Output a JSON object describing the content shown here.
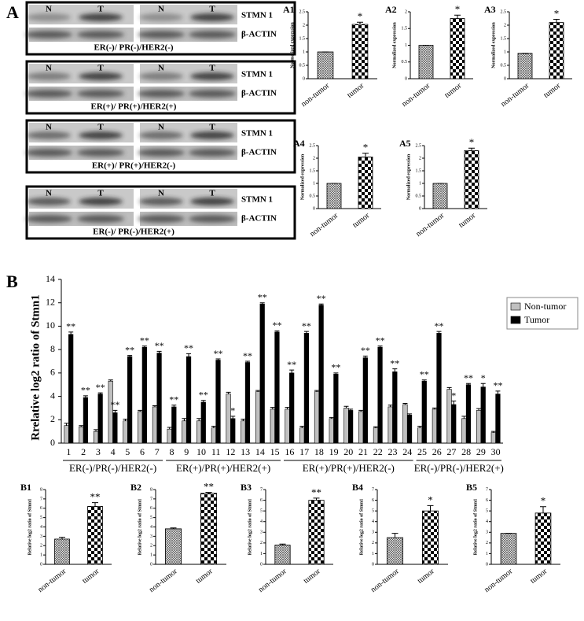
{
  "panels": [
    "A",
    "B"
  ],
  "blots": [
    {
      "lanes": [
        "N",
        "T",
        "N",
        "T"
      ],
      "bands": [
        "STMN 1",
        "β-ACTIN"
      ],
      "caption": "ER(-)/ PR(-)/HER2(-)"
    },
    {
      "lanes": [
        "N",
        "T",
        "N",
        "T"
      ],
      "bands": [
        "STMN 1",
        "β-ACTIN"
      ],
      "caption": "ER(+)/ PR(+)/HER2(+)"
    },
    {
      "lanes": [
        "N",
        "T",
        "N",
        "T"
      ],
      "bands": [
        "STMN 1",
        "β-ACTIN"
      ],
      "caption": "ER(+)/ PR(+)/HER2(-)"
    },
    {
      "lanes": [
        "N",
        "T",
        "N",
        "T"
      ],
      "bands": [
        "STMN 1",
        "β-ACTIN"
      ],
      "caption": "ER(-)/ PR(-)/HER2(+)"
    }
  ],
  "chart_data": [
    {
      "type": "bar",
      "label": "A1",
      "ylabel": "Normalized expression",
      "categories": [
        "non-tumor",
        "tumor"
      ],
      "values": [
        1.0,
        2.03
      ],
      "errors": [
        0.0,
        0.08
      ],
      "significance": [
        null,
        "*"
      ],
      "ylim": [
        0,
        2.5
      ],
      "yticks": [
        0,
        0.5,
        1,
        1.5,
        2,
        2.5
      ]
    },
    {
      "type": "bar",
      "label": "A2",
      "ylabel": "Normalized expression",
      "categories": [
        "non-tumor",
        "tumor"
      ],
      "values": [
        1.0,
        1.8
      ],
      "errors": [
        0.0,
        0.1
      ],
      "significance": [
        null,
        "*"
      ],
      "ylim": [
        0,
        2
      ],
      "yticks": [
        0,
        0.5,
        1,
        1.5,
        2
      ]
    },
    {
      "type": "bar",
      "label": "A3",
      "ylabel": "Normalized expression",
      "categories": [
        "non-tumor",
        "tumor"
      ],
      "values": [
        0.95,
        2.1
      ],
      "errors": [
        0.0,
        0.12
      ],
      "significance": [
        null,
        "*"
      ],
      "ylim": [
        0,
        2.5
      ],
      "yticks": [
        0,
        0.5,
        1,
        1.5,
        2,
        2.5
      ]
    },
    {
      "type": "bar",
      "label": "A4",
      "ylabel": "Normalized expression",
      "categories": [
        "non-tumor",
        "tumor"
      ],
      "values": [
        1.0,
        2.05
      ],
      "errors": [
        0.0,
        0.15
      ],
      "significance": [
        null,
        "*"
      ],
      "ylim": [
        0,
        2.5
      ],
      "yticks": [
        0,
        0.5,
        1,
        1.5,
        2,
        2.5
      ]
    },
    {
      "type": "bar",
      "label": "A5",
      "ylabel": "Normalized expression",
      "categories": [
        "non-tumor",
        "tumor"
      ],
      "values": [
        1.0,
        2.3
      ],
      "errors": [
        0.0,
        0.1
      ],
      "significance": [
        null,
        "*"
      ],
      "ylim": [
        0,
        2.5
      ],
      "yticks": [
        0,
        0.5,
        1,
        1.5,
        2,
        2.5
      ]
    },
    {
      "type": "groupedbar",
      "label": "B",
      "ylabel": "Rrelative log2 ratio of Stmn1",
      "categories": [
        "1",
        "2",
        "3",
        "4",
        "5",
        "6",
        "7",
        "8",
        "9",
        "10",
        "11",
        "12",
        "13",
        "14",
        "15",
        "16",
        "17",
        "18",
        "19",
        "20",
        "21",
        "22",
        "23",
        "24",
        "25",
        "26",
        "27",
        "28",
        "29",
        "30"
      ],
      "series": [
        {
          "name": "Non-tumor",
          "color": "#c0c0c0",
          "values": [
            1.5,
            1.4,
            1.0,
            5.3,
            1.9,
            2.7,
            3.1,
            1.2,
            1.9,
            1.9,
            1.3,
            4.2,
            1.9,
            4.4,
            2.9,
            2.9,
            1.3,
            4.4,
            2.1,
            3.0,
            2.7,
            1.3,
            3.1,
            3.3,
            1.3,
            2.9,
            4.6,
            2.1,
            2.8,
            0.9
          ],
          "errors": [
            0.2,
            0.1,
            0.15,
            0.1,
            0.15,
            0.1,
            0.1,
            0.15,
            0.2,
            0.2,
            0.15,
            0.15,
            0.15,
            0.1,
            0.15,
            0.15,
            0.15,
            0.1,
            0.1,
            0.15,
            0.1,
            0.1,
            0.15,
            0.1,
            0.15,
            0.1,
            0.15,
            0.2,
            0.15,
            0.1
          ]
        },
        {
          "name": "Tumor",
          "color": "#000000",
          "values": [
            9.3,
            3.9,
            4.2,
            2.6,
            7.4,
            8.2,
            7.7,
            3.1,
            7.4,
            3.5,
            7.1,
            2.1,
            6.9,
            11.9,
            9.5,
            6.0,
            9.4,
            11.8,
            5.9,
            2.8,
            7.3,
            8.2,
            6.1,
            2.4,
            5.3,
            9.4,
            3.3,
            5.0,
            4.8,
            4.2
          ],
          "errors": [
            0.2,
            0.15,
            0.1,
            0.2,
            0.1,
            0.1,
            0.15,
            0.15,
            0.25,
            0.15,
            0.1,
            0.2,
            0.1,
            0.1,
            0.1,
            0.25,
            0.15,
            0.1,
            0.1,
            0.1,
            0.15,
            0.1,
            0.25,
            0.1,
            0.1,
            0.15,
            0.3,
            0.1,
            0.3,
            0.25
          ]
        }
      ],
      "significance": [
        "**",
        "**",
        "**",
        "**",
        "**",
        "**",
        "**",
        "**",
        "**",
        "**",
        "**",
        "*",
        "**",
        "**",
        "**",
        "**",
        "**",
        "**",
        "**",
        null,
        "**",
        "**",
        "**",
        null,
        "**",
        "**",
        "*",
        "**",
        "*",
        "**"
      ],
      "groups": [
        "ER(-)/PR(-)/HER2(-)",
        "ER(+)/PR(+)/HER2(+)",
        "ER(+)/PR(+)/HER2(-)",
        "ER(-)/PR(-)/HER2(+)"
      ],
      "legend": "upper right",
      "ylim": [
        0,
        14
      ],
      "yticks": [
        0,
        2,
        4,
        6,
        8,
        10,
        12,
        14
      ]
    },
    {
      "type": "bar",
      "label": "B1",
      "ylabel": "Relative log2 ratio of Stmn1",
      "categories": [
        "non-tumor",
        "tumor"
      ],
      "values": [
        2.7,
        6.2
      ],
      "errors": [
        0.2,
        0.4
      ],
      "significance": [
        null,
        "**"
      ],
      "ylim": [
        0,
        8
      ],
      "yticks": [
        0,
        1,
        2,
        3,
        4,
        5,
        6,
        7,
        8
      ]
    },
    {
      "type": "bar",
      "label": "B2",
      "ylabel": "Relative log2 ratio of Stmn1",
      "categories": [
        "non-tumor",
        "tumor"
      ],
      "values": [
        3.8,
        7.6
      ],
      "errors": [
        0.1,
        0.1
      ],
      "significance": [
        null,
        "**"
      ],
      "ylim": [
        0,
        8
      ],
      "yticks": [
        0,
        1,
        2,
        3,
        4,
        5,
        6,
        7,
        8
      ]
    },
    {
      "type": "bar",
      "label": "B3",
      "ylabel": "Relative log2 ratio of Stmn1",
      "categories": [
        "non-tumor",
        "tumor"
      ],
      "values": [
        1.8,
        6.0
      ],
      "errors": [
        0.1,
        0.2
      ],
      "significance": [
        null,
        "**"
      ],
      "ylim": [
        0,
        7
      ],
      "yticks": [
        0,
        1,
        2,
        3,
        4,
        5,
        6,
        7
      ]
    },
    {
      "type": "bar",
      "label": "B4",
      "ylabel": "Relative log2 ratio of Stmn1",
      "categories": [
        "non-tumor",
        "tumor"
      ],
      "values": [
        2.5,
        5.0
      ],
      "errors": [
        0.4,
        0.5
      ],
      "significance": [
        null,
        "*"
      ],
      "ylim": [
        0,
        7
      ],
      "yticks": [
        0,
        1,
        2,
        3,
        4,
        5,
        6,
        7
      ]
    },
    {
      "type": "bar",
      "label": "B5",
      "ylabel": "Relative log2 ratio of Stmn1",
      "categories": [
        "non-tumor",
        "tumor"
      ],
      "values": [
        2.9,
        4.8
      ],
      "errors": [
        0.0,
        0.6
      ],
      "significance": [
        null,
        "*"
      ],
      "ylim": [
        0,
        7
      ],
      "yticks": [
        0,
        1,
        2,
        3,
        4,
        5,
        6,
        7
      ]
    }
  ]
}
